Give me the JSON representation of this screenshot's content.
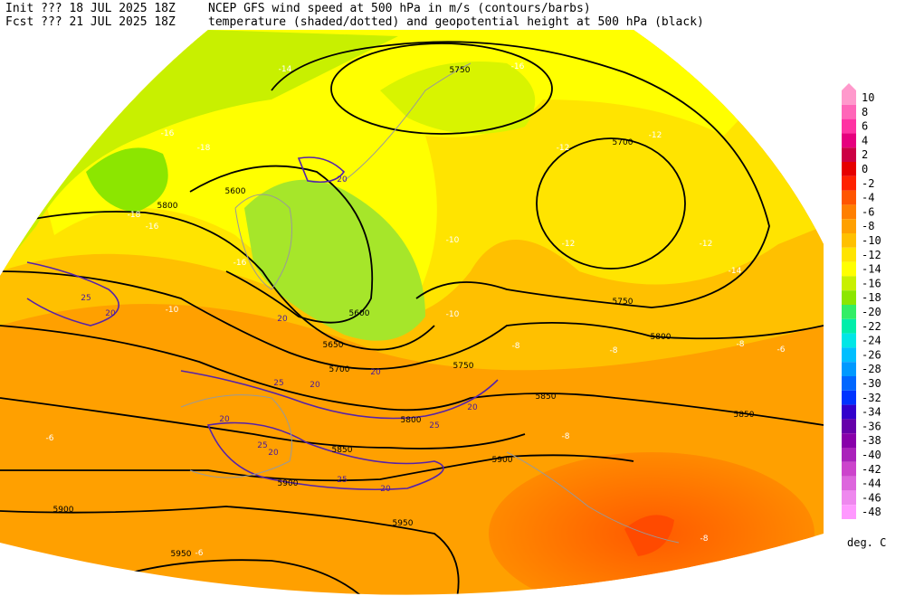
{
  "header": {
    "init": "Init  ??? 18 JUL 2025 18Z",
    "fcst": "Fcst ??? 21 JUL 2025 18Z",
    "line1": "NCEP GFS wind speed at 500 hPa in m/s (contours/barbs)",
    "line2": "temperature (shaded/dotted) and geopotential height at 500 hPa (black)"
  },
  "colorbar": {
    "labels": [
      "10",
      "8",
      "6",
      "4",
      "2",
      "0",
      "-2",
      "-4",
      "-6",
      "-8",
      "-10",
      "-12",
      "-14",
      "-16",
      "-18",
      "-20",
      "-22",
      "-24",
      "-26",
      "-28",
      "-30",
      "-32",
      "-34",
      "-36",
      "-38",
      "-40",
      "-42",
      "-44",
      "-46",
      "-48"
    ],
    "colors": [
      "#ff99cc",
      "#ff66b8",
      "#ff33a3",
      "#e6007e",
      "#cc0044",
      "#e60000",
      "#ff2200",
      "#ff5500",
      "#ff7f00",
      "#ffa000",
      "#ffc000",
      "#ffe400",
      "#ffff00",
      "#c8f000",
      "#8ce600",
      "#33ee66",
      "#00eeaa",
      "#00e6e6",
      "#00bfff",
      "#0099ff",
      "#0066ff",
      "#0033ff",
      "#3300cc",
      "#6600aa",
      "#8800aa",
      "#aa22bb",
      "#cc44cc",
      "#dd66dd",
      "#ee88ee",
      "#ff99ff"
    ],
    "unit": "deg. C"
  },
  "height_labels": [
    "5750",
    "5700",
    "5600",
    "5800",
    "5600",
    "5650",
    "5700",
    "5750",
    "5800",
    "5850",
    "5850",
    "5800",
    "5850",
    "5900",
    "5900",
    "5900",
    "5950",
    "5950",
    "5750"
  ],
  "wind_labels": [
    "20",
    "25",
    "20",
    "20",
    "25",
    "20",
    "20",
    "20",
    "25",
    "20",
    "25",
    "20",
    "25",
    "20"
  ],
  "temp_labels": [
    "-16",
    "-18",
    "-18",
    "-16",
    "-16",
    "-14",
    "-16",
    "-12",
    "-12",
    "-12",
    "-12",
    "-14",
    "-10",
    "-10",
    "-10",
    "-8",
    "-8",
    "-8",
    "-6",
    "-6",
    "-8",
    "-8",
    "-6"
  ]
}
